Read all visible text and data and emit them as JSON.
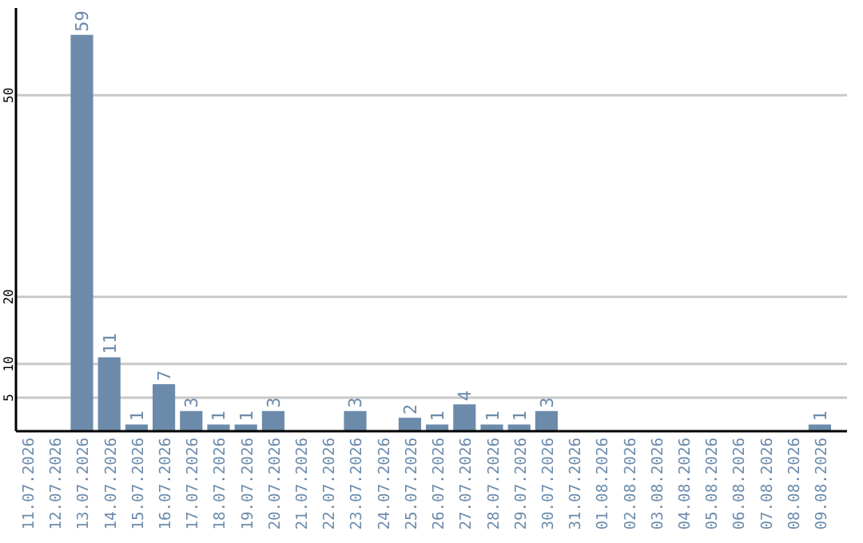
{
  "chart_data": {
    "type": "bar",
    "categories": [
      "11.07.2026",
      "12.07.2026",
      "13.07.2026",
      "14.07.2026",
      "15.07.2026",
      "16.07.2026",
      "17.07.2026",
      "18.07.2026",
      "19.07.2026",
      "20.07.2026",
      "21.07.2026",
      "22.07.2026",
      "23.07.2026",
      "24.07.2026",
      "25.07.2026",
      "26.07.2026",
      "27.07.2026",
      "28.07.2026",
      "29.07.2026",
      "30.07.2026",
      "31.07.2026",
      "01.08.2026",
      "02.08.2026",
      "03.08.2026",
      "04.08.2026",
      "05.08.2026",
      "06.08.2026",
      "07.08.2026",
      "08.08.2026",
      "09.08.2026"
    ],
    "values": [
      0,
      0,
      59,
      11,
      1,
      7,
      3,
      1,
      1,
      3,
      0,
      0,
      3,
      0,
      2,
      1,
      4,
      1,
      1,
      3,
      0,
      0,
      0,
      0,
      0,
      0,
      0,
      0,
      0,
      1
    ],
    "value_labels": [
      null,
      null,
      "59",
      "11",
      "1",
      "7",
      "3",
      "1",
      "1",
      "3",
      null,
      null,
      "3",
      null,
      "2",
      "1",
      "4",
      "1",
      "1",
      "3",
      null,
      null,
      null,
      null,
      null,
      null,
      null,
      null,
      null,
      "1"
    ],
    "color": "#6c8bab",
    "ylim": [
      0,
      63
    ],
    "yticks": [
      5,
      10,
      20,
      50
    ],
    "grid": "y"
  }
}
